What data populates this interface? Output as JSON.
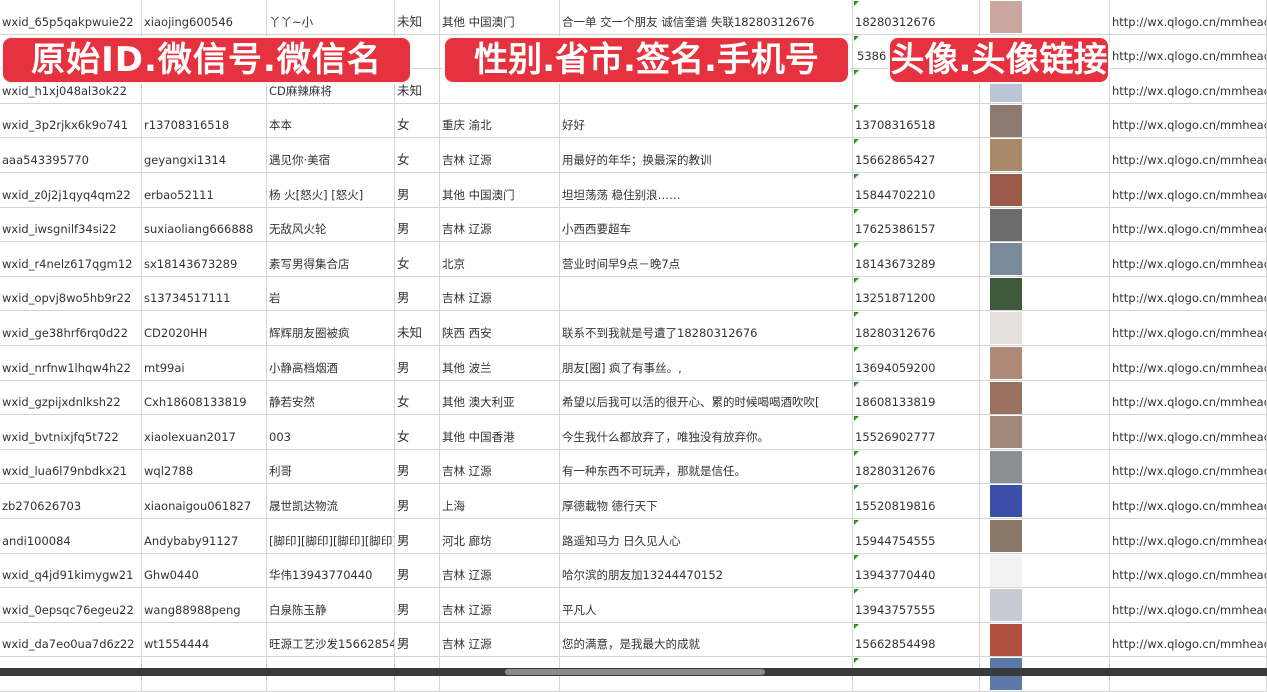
{
  "banners": [
    "原始ID.微信号.微信名",
    "性别.省市.签名.手机号",
    "头像.头像链接"
  ],
  "colors": {
    "banner": "#e6323e",
    "gridline": "#d4d4d4"
  },
  "rows": [
    [
      "wxid_65p5qakpwuie22",
      "xiaojing600546",
      "丫丫~小",
      "未知",
      "其他 中国澳门",
      "合一单 交一个朋友 诚信奎谱 失联18280312676",
      "18280312676",
      "#c9a7a0",
      "http://wx.qlogo.cn/mmhead"
    ],
    [
      "",
      "",
      "",
      "",
      "",
      "",
      "5386",
      "#6f86b8",
      "http://wx.qlogo.cn/mmhead"
    ],
    [
      "wxid_h1xj048al3ok22",
      "",
      "CD麻辣麻将",
      "未知",
      "",
      "",
      "",
      "#b9c4d6",
      "http://wx.qlogo.cn/mmhead"
    ],
    [
      "wxid_3p2rjkx6k9o741",
      "r13708316518",
      "本本",
      "女",
      "重庆 渝北",
      "好好",
      "13708316518",
      "#8c7a72",
      "http://wx.qlogo.cn/mmhead"
    ],
    [
      "aaa543395770",
      "geyangxi1314",
      "遇见你·美宿",
      "女",
      "吉林 辽源",
      "用最好的年华；换最深的教训",
      "15662865427",
      "#a88a6a",
      "http://wx.qlogo.cn/mmhead"
    ],
    [
      "wxid_z0j2j1qyq4qm22",
      "erbao52111",
      "杨 火[怒火] [怒火]",
      "男",
      "其他 中国澳门",
      "坦坦荡荡 稳住别浪……",
      "15844702210",
      "#9c5a48",
      "http://wx.qlogo.cn/mmhead"
    ],
    [
      "wxid_iwsgnilf34si22",
      "suxiaoliang666888",
      "无敌风火轮",
      "男",
      "吉林 辽源",
      "小西西要超车",
      "17625386157",
      "#6c6c6c",
      "http://wx.qlogo.cn/mmhead"
    ],
    [
      "wxid_r4nelz617qgm12",
      "sx18143673289",
      "素写男得集合店",
      "女",
      "北京",
      "营业时间早9点－晚7点",
      "18143673289",
      "#7a8a9a",
      "http://wx.qlogo.cn/mmhead"
    ],
    [
      "wxid_opvj8wo5hb9r22",
      "s13734517111",
      "岩",
      "男",
      "吉林 辽源",
      "",
      "13251871200",
      "#3d5a3a",
      "http://wx.qlogo.cn/mmhead"
    ],
    [
      "wxid_ge38hrf6rq0d22",
      "CD2020HH",
      "辉辉朋友圈被疯",
      "未知",
      "陕西 西安",
      "联系不到我就是号遭了18280312676",
      "18280312676",
      "#e6e0dc",
      "http://wx.qlogo.cn/mmhead"
    ],
    [
      "wxid_nrfnw1lhqw4h22",
      "mt99ai",
      "小静高档烟酒",
      "男",
      "其他 波兰",
      "朋友[圈] 疯了有事丝。,",
      "13694059200",
      "#b08a78",
      "http://wx.qlogo.cn/mmhead"
    ],
    [
      "wxid_gzpijxdnlksh22",
      "Cxh18608133819",
      "静若安然",
      "女",
      "其他 澳大利亚",
      "希望以后我可以活的很开心、累的时候喝喝酒吹吹[",
      "18608133819",
      "#9a7060",
      "http://wx.qlogo.cn/mmhead"
    ],
    [
      "wxid_bvtnixjfq5t722",
      "xiaolexuan2017",
      "003",
      "女",
      "其他 中国香港",
      "今生我什么都放弃了，唯独没有放弃你。",
      "15526902777",
      "#a0887a",
      "http://wx.qlogo.cn/mmhead"
    ],
    [
      "wxid_lua6l79nbdkx21",
      "wql2788",
      "利哥",
      "男",
      "吉林 辽源",
      "有一种东西不可玩弄，那就是信任。",
      "18280312676",
      "#8a8f96",
      "http://wx.qlogo.cn/mmhead"
    ],
    [
      "zb270626703",
      "xiaonaigou061827",
      "晟世凯达物流",
      "男",
      "上海",
      "厚德載物 德行天下",
      "15520819816",
      "#3c4fa8",
      "http://wx.qlogo.cn/mmhead"
    ],
    [
      "andi100084",
      "Andybaby91127",
      "[脚印][脚印][脚印][脚印]",
      "男",
      "河北 廊坊",
      "路遥知马力 日久见人心",
      "15944754555",
      "#8a7868",
      "http://wx.qlogo.cn/mmhead"
    ],
    [
      "wxid_q4jd91kimygw21",
      "Ghw0440",
      "华伟13943770440",
      "男",
      "吉林 辽源",
      "哈尔滨的朋友加13244470152",
      "13943770440",
      "#f2f2f2",
      "http://wx.qlogo.cn/mmhead"
    ],
    [
      "wxid_0epsqc76egeu22",
      "wang88988peng",
      "白泉陈玉静",
      "男",
      "吉林 辽源",
      "平凡人",
      "13943757555",
      "#c6ccd4",
      "http://wx.qlogo.cn/mmhead"
    ],
    [
      "wxid_da7eo0ua7d6z22",
      "wt1554444",
      "旺源工艺沙发15662854",
      "男",
      "吉林 辽源",
      "您的满意，是我最大的成就",
      "15662854498",
      "#b05040",
      "http://wx.qlogo.cn/mmhead"
    ],
    [
      "",
      "",
      "",
      "",
      "",
      "",
      "",
      "#5a78a8",
      ""
    ]
  ]
}
